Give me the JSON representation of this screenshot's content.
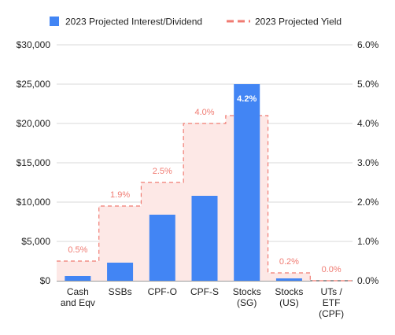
{
  "chart_data": {
    "type": "bar",
    "categories": [
      [
        "Cash",
        "and Eqv"
      ],
      [
        "SSBs"
      ],
      [
        "CPF-O"
      ],
      [
        "CPF-S"
      ],
      [
        "Stocks",
        "(SG)"
      ],
      [
        "Stocks",
        "(US)"
      ],
      [
        "UTs /",
        "ETF",
        "(CPF)"
      ]
    ],
    "series": [
      {
        "name": "2023 Projected Interest/Dividend",
        "type": "bar",
        "axis": "left",
        "color": "#4285f4",
        "values": [
          600,
          2300,
          8400,
          10800,
          25000,
          300,
          0
        ]
      },
      {
        "name": "2023 Projected Yield",
        "type": "stepped-area",
        "axis": "right",
        "color": "#f07b72",
        "fill": "#fde8e6",
        "values": [
          0.5,
          1.9,
          2.5,
          4.0,
          4.2,
          0.2,
          0.0
        ],
        "labels": [
          "0.5%",
          "1.9%",
          "2.5%",
          "4.0%",
          "4.2%",
          "0.2%",
          "0.0%"
        ]
      }
    ],
    "y_left": {
      "ylim": [
        0,
        30000
      ],
      "ticks": [
        0,
        5000,
        10000,
        15000,
        20000,
        25000,
        30000
      ],
      "tick_labels": [
        "$0",
        "$5,000",
        "$10,000",
        "$15,000",
        "$20,000",
        "$25,000",
        "$30,000"
      ]
    },
    "y_right": {
      "ylim": [
        0,
        6
      ],
      "ticks": [
        0,
        1,
        2,
        3,
        4,
        5,
        6
      ],
      "tick_labels": [
        "0.0%",
        "1.0%",
        "2.0%",
        "3.0%",
        "4.0%",
        "5.0%",
        "6.0%"
      ]
    },
    "grid": true,
    "legend": "top"
  }
}
